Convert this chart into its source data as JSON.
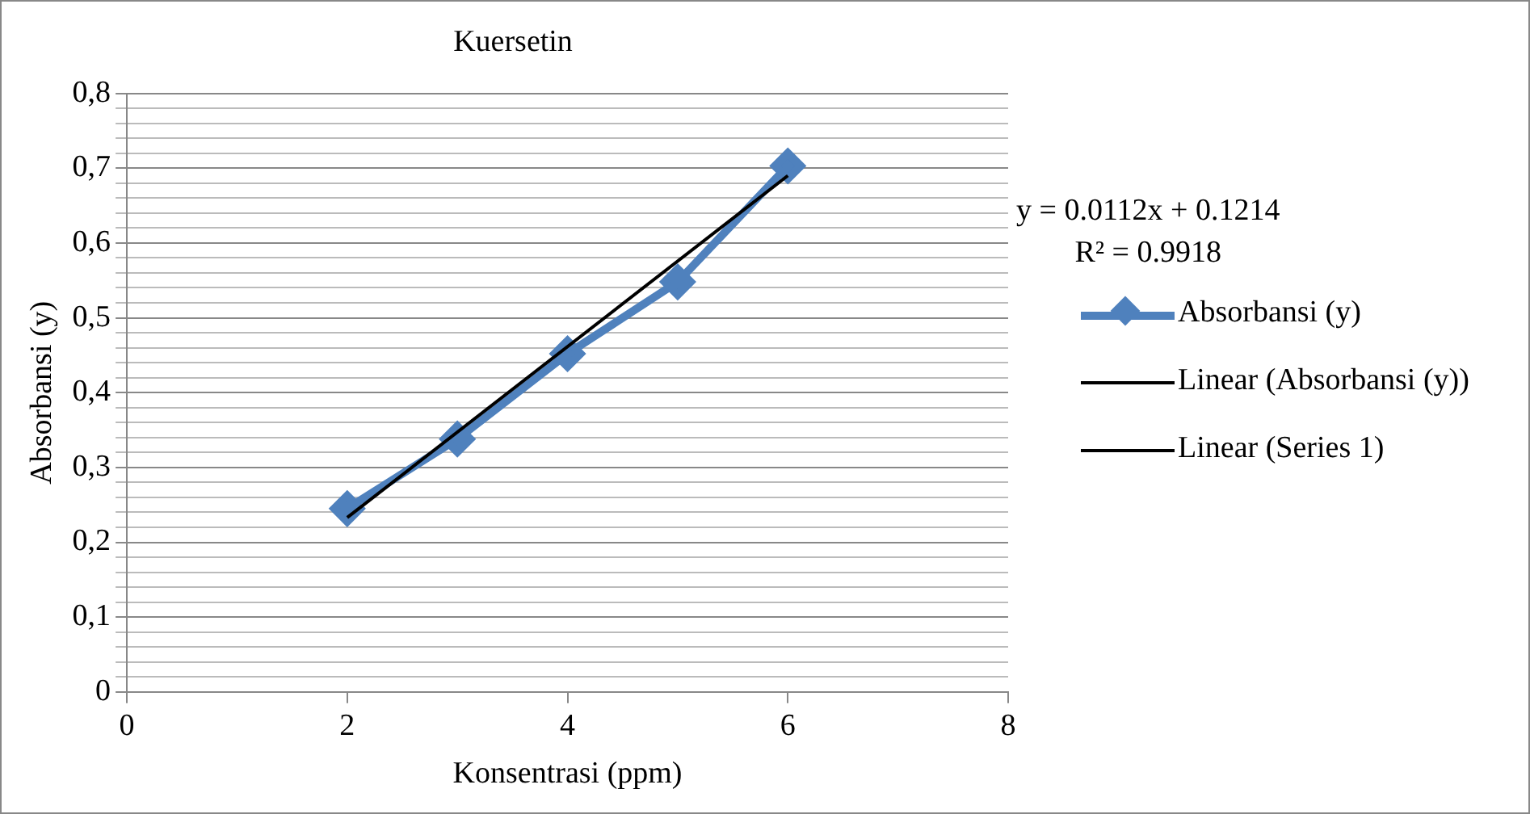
{
  "chart_data": {
    "type": "line",
    "title": "Kuersetin",
    "xlabel": "Konsentrasi (ppm)",
    "ylabel": "Absorbansi (y)",
    "annotations": [
      "y = 0.0112x + 0.1214",
      "R² = 0.9918"
    ],
    "xlim": [
      0,
      8
    ],
    "xticks": [
      0,
      2,
      4,
      6,
      8
    ],
    "ylim": [
      0,
      0.8
    ],
    "yticks": [
      {
        "value": 0,
        "label": "0"
      },
      {
        "value": 0.02,
        "label": null
      },
      {
        "value": 0.04,
        "label": null
      },
      {
        "value": 0.06,
        "label": null
      },
      {
        "value": 0.08,
        "label": null
      },
      {
        "value": 0.1,
        "label": "0,1"
      },
      {
        "value": 0.12,
        "label": null
      },
      {
        "value": 0.14,
        "label": null
      },
      {
        "value": 0.16,
        "label": null
      },
      {
        "value": 0.18,
        "label": null
      },
      {
        "value": 0.2,
        "label": "0,2"
      },
      {
        "value": 0.22,
        "label": null
      },
      {
        "value": 0.24,
        "label": null
      },
      {
        "value": 0.26,
        "label": null
      },
      {
        "value": 0.28,
        "label": null
      },
      {
        "value": 0.3,
        "label": "0,3"
      },
      {
        "value": 0.32,
        "label": null
      },
      {
        "value": 0.34,
        "label": null
      },
      {
        "value": 0.36,
        "label": null
      },
      {
        "value": 0.38,
        "label": null
      },
      {
        "value": 0.4,
        "label": "0,4"
      },
      {
        "value": 0.42,
        "label": null
      },
      {
        "value": 0.44,
        "label": null
      },
      {
        "value": 0.46,
        "label": null
      },
      {
        "value": 0.48,
        "label": null
      },
      {
        "value": 0.5,
        "label": "0,5"
      },
      {
        "value": 0.52,
        "label": null
      },
      {
        "value": 0.54,
        "label": null
      },
      {
        "value": 0.56,
        "label": null
      },
      {
        "value": 0.58,
        "label": null
      },
      {
        "value": 0.6,
        "label": "0,6"
      },
      {
        "value": 0.62,
        "label": null
      },
      {
        "value": 0.64,
        "label": null
      },
      {
        "value": 0.66,
        "label": null
      },
      {
        "value": 0.68,
        "label": null
      },
      {
        "value": 0.7,
        "label": "0,7"
      },
      {
        "value": 0.72,
        "label": null
      },
      {
        "value": 0.74,
        "label": null
      },
      {
        "value": 0.76,
        "label": null
      },
      {
        "value": 0.78,
        "label": null
      },
      {
        "value": 0.8,
        "label": "0,8"
      }
    ],
    "grid": "y",
    "legend": "right",
    "series": [
      {
        "name": "Absorbansi (y)",
        "color": "#4f81bd",
        "marker": "diamond",
        "x": [
          2,
          3,
          4,
          5,
          6
        ],
        "values": [
          0.245,
          0.338,
          0.452,
          0.548,
          0.703
        ]
      },
      {
        "name": "Linear (Absorbansi (y))",
        "color": "#000000",
        "marker": "none",
        "x": [
          2,
          6
        ],
        "values": [
          0.233,
          0.69
        ]
      },
      {
        "name": "Linear (Series 1)",
        "color": "#000000",
        "marker": "none"
      }
    ]
  }
}
